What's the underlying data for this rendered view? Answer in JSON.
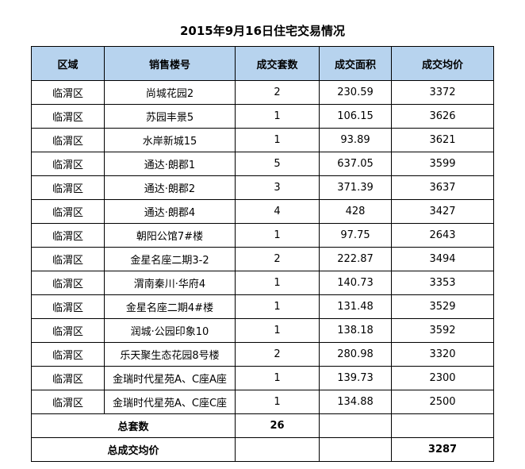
{
  "title": "2015年9月16日住宅交易情况",
  "headers": [
    "区域",
    "销售楼号",
    "成交套数",
    "成交面积",
    "成交均价"
  ],
  "rows": [
    [
      "临渭区",
      "尚城花园2",
      "2",
      "230.59",
      "3372"
    ],
    [
      "临渭区",
      "苏园丰景5",
      "1",
      "106.15",
      "3626"
    ],
    [
      "临渭区",
      "水岸新城15",
      "1",
      "93.89",
      "3621"
    ],
    [
      "临渭区",
      "通达·朗郡1",
      "5",
      "637.05",
      "3599"
    ],
    [
      "临渭区",
      "通达·朗郡2",
      "3",
      "371.39",
      "3637"
    ],
    [
      "临渭区",
      "通达·朗郡4",
      "4",
      "428",
      "3427"
    ],
    [
      "临渭区",
      "朝阳公馆7#楼",
      "1",
      "97.75",
      "2643"
    ],
    [
      "临渭区",
      "金星名座二期3-2",
      "2",
      "222.87",
      "3494"
    ],
    [
      "临渭区",
      "渭南秦川·华府4",
      "1",
      "140.73",
      "3353"
    ],
    [
      "临渭区",
      "金星名座二期4#楼",
      "1",
      "131.48",
      "3529"
    ],
    [
      "临渭区",
      "润城·公园印象10",
      "1",
      "138.18",
      "3592"
    ],
    [
      "临渭区",
      "乐天聚生态花园8号楼",
      "2",
      "280.98",
      "3320"
    ],
    [
      "临渭区",
      "金瑞时代星苑A、C座A座",
      "1",
      "139.73",
      "2300"
    ],
    [
      "临渭区",
      "金瑞时代星苑A、C座C座",
      "1",
      "134.88",
      "2500"
    ]
  ],
  "summary": {
    "total_units_label": "总套数",
    "total_units_value": "26",
    "avg_price_label": "总成交均价",
    "avg_price_value": "3287"
  }
}
